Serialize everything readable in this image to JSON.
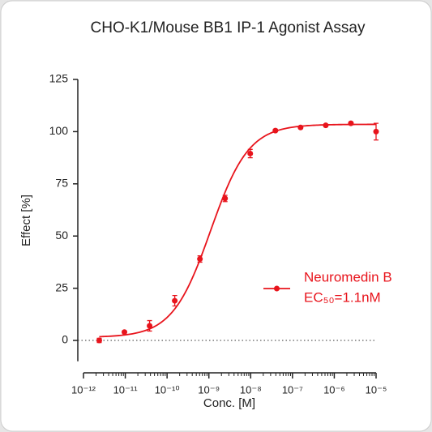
{
  "chart_data": {
    "type": "dose-response",
    "title": "CHO-K1/Mouse BB1 IP-1 Agonist Assay",
    "x_label": "Conc. [M]",
    "y_label": "Effect  [%]",
    "log_x": true,
    "xlim": [
      1e-12,
      1e-05
    ],
    "xticks": [
      {
        "value": 1e-12,
        "label": "10⁻¹²"
      },
      {
        "value": 1e-11,
        "label": "10⁻¹¹"
      },
      {
        "value": 1e-10,
        "label": "10⁻¹⁰"
      },
      {
        "value": 1e-09,
        "label": "10⁻⁹"
      },
      {
        "value": 1e-08,
        "label": "10⁻⁸"
      },
      {
        "value": 1e-07,
        "label": "10⁻⁷"
      },
      {
        "value": 1e-06,
        "label": "10⁻⁶"
      },
      {
        "value": 1e-05,
        "label": "10⁻⁵"
      }
    ],
    "ylim": [
      -10,
      125
    ],
    "yticks": [
      0,
      25,
      50,
      75,
      100,
      125
    ],
    "zero_line": true,
    "series": [
      {
        "name": "Neuromedin B",
        "annotation": "EC₅₀=1.1nM",
        "color": "#e8141c",
        "x": [
          2.384e-12,
          9.537e-12,
          3.815e-11,
          1.526e-10,
          6.104e-10,
          2.441e-09,
          9.766e-09,
          3.906e-08,
          1.5625e-07,
          6.25e-07,
          2.5e-06,
          1e-05
        ],
        "values": [
          0,
          4,
          7,
          19,
          39,
          68,
          89.5,
          100.5,
          102,
          103,
          104,
          100
        ],
        "errors": [
          1,
          0.5,
          2.5,
          2.5,
          1.5,
          1.5,
          2,
          0.5,
          0.5,
          0.5,
          0.5,
          4
        ],
        "fit": {
          "bottom": 1.5,
          "top": 103.5,
          "logec50": -8.96,
          "hill": 0.95
        }
      }
    ]
  }
}
